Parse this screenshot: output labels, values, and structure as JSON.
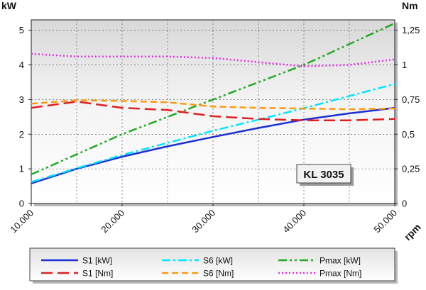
{
  "chart_data": {
    "type": "line",
    "left_axis_unit": "kW",
    "right_axis_unit": "Nm",
    "x_axis_unit": "rpm",
    "xlim": [
      10000,
      50000
    ],
    "y_left_lim": [
      0,
      5.3
    ],
    "y_right_lim": [
      0,
      1.325
    ],
    "x_ticks": [
      {
        "value": 10000,
        "label": "10.000"
      },
      {
        "value": 20000,
        "label": "20.000"
      },
      {
        "value": 30000,
        "label": "30.000"
      },
      {
        "value": 40000,
        "label": "40.000"
      },
      {
        "value": 50000,
        "label": "50.000"
      }
    ],
    "y_left_ticks": [
      {
        "value": 0,
        "label": "0"
      },
      {
        "value": 1,
        "label": "1"
      },
      {
        "value": 2,
        "label": "2"
      },
      {
        "value": 3,
        "label": "3"
      },
      {
        "value": 4,
        "label": "4"
      },
      {
        "value": 5,
        "label": "5"
      }
    ],
    "y_right_ticks": [
      {
        "value": 0,
        "label": "0"
      },
      {
        "value": 0.25,
        "label": "0,25"
      },
      {
        "value": 0.5,
        "label": "0,5"
      },
      {
        "value": 0.75,
        "label": "0,75"
      },
      {
        "value": 1,
        "label": "1"
      },
      {
        "value": 1.25,
        "label": "1,25"
      }
    ],
    "grid": true,
    "model_label": "KL 3035",
    "legend_position": "bottom",
    "series": [
      {
        "name": "S1 [kW]",
        "axis": "left",
        "color": "#1a2fd6",
        "dash": "solid",
        "width": 2.5,
        "x": [
          10000,
          15000,
          20000,
          25000,
          30000,
          35000,
          40000,
          45000,
          50000
        ],
        "y": [
          0.58,
          1.0,
          1.35,
          1.65,
          1.92,
          2.18,
          2.42,
          2.6,
          2.76
        ]
      },
      {
        "name": "S6 [kW]",
        "axis": "left",
        "color": "#00e5ff",
        "dash": "dashdot",
        "width": 2.5,
        "x": [
          10000,
          15000,
          20000,
          25000,
          30000,
          35000,
          40000,
          45000,
          50000
        ],
        "y": [
          0.62,
          1.02,
          1.4,
          1.75,
          2.1,
          2.42,
          2.75,
          3.1,
          3.45
        ]
      },
      {
        "name": "Pmax [kW]",
        "axis": "left",
        "color": "#22aa22",
        "dash": "dashdotdot",
        "width": 2.5,
        "x": [
          10000,
          20000,
          30000,
          40000,
          50000
        ],
        "y": [
          0.84,
          2.0,
          3.0,
          4.0,
          5.2
        ]
      },
      {
        "name": "S1 [Nm]",
        "axis": "right",
        "color": "#e02020",
        "dash": "longdash",
        "width": 2.5,
        "x": [
          10000,
          15000,
          20000,
          25000,
          30000,
          35000,
          40000,
          45000,
          50000
        ],
        "y": [
          0.69,
          0.735,
          0.69,
          0.675,
          0.63,
          0.61,
          0.6,
          0.6,
          0.61
        ]
      },
      {
        "name": "S6 [Nm]",
        "axis": "right",
        "color": "#ff9910",
        "dash": "dash",
        "width": 2.5,
        "x": [
          10000,
          15000,
          20000,
          25000,
          30000,
          35000,
          40000,
          45000,
          50000
        ],
        "y": [
          0.72,
          0.745,
          0.74,
          0.73,
          0.7,
          0.69,
          0.685,
          0.68,
          0.685
        ]
      },
      {
        "name": "Pmax [Nm]",
        "axis": "right",
        "color": "#e22ee2",
        "dash": "dot",
        "width": 2.5,
        "x": [
          10000,
          15000,
          20000,
          25000,
          30000,
          35000,
          40000,
          45000,
          50000
        ],
        "y": [
          1.08,
          1.06,
          1.06,
          1.06,
          1.05,
          1.02,
          0.99,
          1.0,
          1.04
        ]
      }
    ]
  }
}
